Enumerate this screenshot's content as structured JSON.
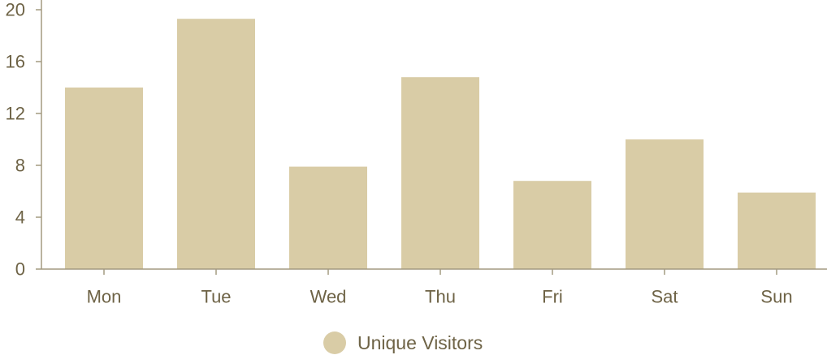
{
  "chart_data": {
    "type": "bar",
    "title": "",
    "xlabel": "",
    "ylabel": "",
    "categories": [
      "Mon",
      "Tue",
      "Wed",
      "Thu",
      "Fri",
      "Sat",
      "Sun"
    ],
    "series": [
      {
        "name": "Unique Visitors",
        "values": [
          14,
          19.3,
          7.9,
          14.8,
          6.8,
          10,
          5.9
        ],
        "color": "#d9cca6"
      }
    ],
    "ylim": [
      0,
      20
    ],
    "yticks": [
      "0",
      "4",
      "8",
      "12",
      "16",
      "20"
    ],
    "grid": false,
    "legend": "bottom-center"
  },
  "colors": {
    "bar": "#d9cca6",
    "axis": "#a39a80",
    "text": "#6e6346"
  }
}
